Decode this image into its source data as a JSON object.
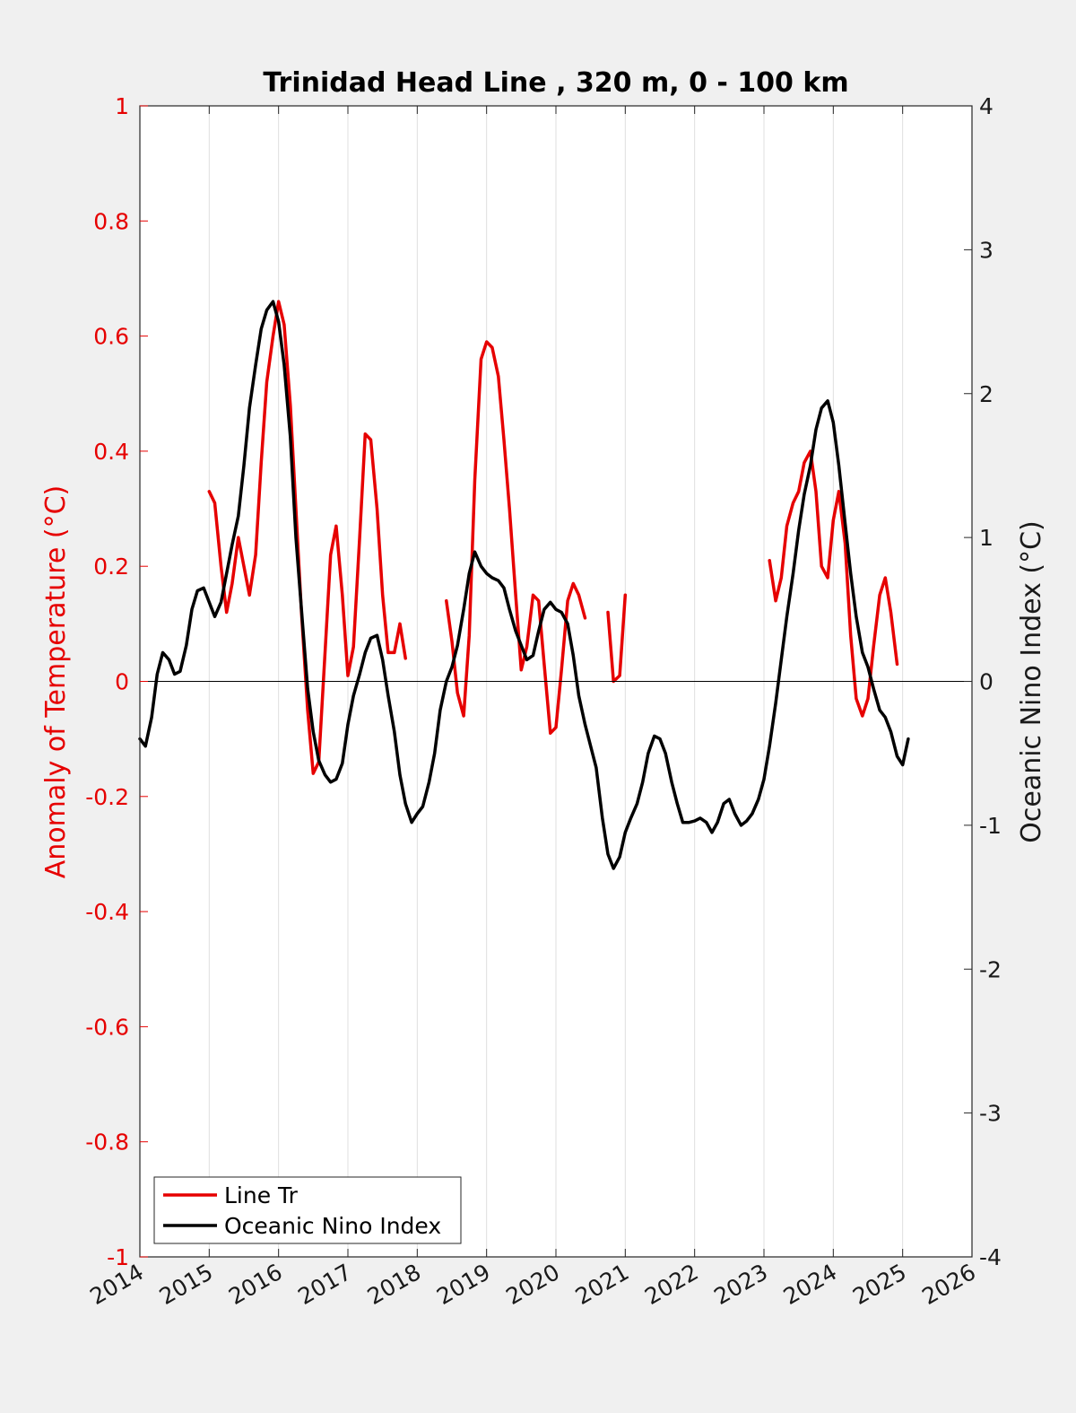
{
  "chart_data": {
    "type": "line",
    "title": "Trinidad Head Line , 320 m, 0 - 100 km",
    "xlabel": "",
    "ylabel_left": "Anomaly of Temperature (°C)",
    "ylabel_right": "Oceanic Nino Index (°C)",
    "xlim": [
      2014,
      2026
    ],
    "ylim_left": [
      -1,
      1
    ],
    "ylim_right": [
      -4,
      4
    ],
    "x_ticks": [
      "2014",
      "2015",
      "2016",
      "2017",
      "2018",
      "2019",
      "2020",
      "2021",
      "2022",
      "2023",
      "2024",
      "2025",
      "2026"
    ],
    "y_ticks_left": [
      "1",
      "0.8",
      "0.6",
      "0.4",
      "0.2",
      "0",
      "-0.2",
      "-0.4",
      "-0.6",
      "-0.8",
      "-1"
    ],
    "y_ticks_right": [
      "4",
      "3",
      "2",
      "1",
      "0",
      "-1",
      "-2",
      "-3",
      "-4"
    ],
    "grid": "vertical",
    "legend_position": "bottom-left",
    "colors": {
      "line_tr": "#e60000",
      "oni": "#000000"
    },
    "series": [
      {
        "name": "Line Tr",
        "axis": "left",
        "segments": [
          [
            [
              2015.0,
              0.33
            ],
            [
              2015.08,
              0.31
            ],
            [
              2015.17,
              0.2
            ],
            [
              2015.25,
              0.12
            ],
            [
              2015.33,
              0.17
            ],
            [
              2015.42,
              0.25
            ],
            [
              2015.5,
              0.2
            ],
            [
              2015.58,
              0.15
            ],
            [
              2015.67,
              0.22
            ],
            [
              2015.75,
              0.38
            ],
            [
              2015.83,
              0.52
            ],
            [
              2015.92,
              0.6
            ],
            [
              2016.0,
              0.66
            ],
            [
              2016.08,
              0.62
            ],
            [
              2016.17,
              0.48
            ],
            [
              2016.25,
              0.3
            ],
            [
              2016.33,
              0.12
            ],
            [
              2016.42,
              -0.05
            ],
            [
              2016.5,
              -0.16
            ],
            [
              2016.58,
              -0.14
            ],
            [
              2016.67,
              0.05
            ],
            [
              2016.75,
              0.22
            ],
            [
              2016.83,
              0.27
            ],
            [
              2016.92,
              0.15
            ],
            [
              2017.0,
              0.01
            ],
            [
              2017.08,
              0.06
            ],
            [
              2017.17,
              0.25
            ],
            [
              2017.25,
              0.43
            ],
            [
              2017.33,
              0.42
            ],
            [
              2017.42,
              0.3
            ],
            [
              2017.5,
              0.15
            ],
            [
              2017.58,
              0.05
            ],
            [
              2017.67,
              0.05
            ],
            [
              2017.75,
              0.1
            ],
            [
              2017.83,
              0.04
            ]
          ],
          [
            [
              2018.42,
              0.14
            ],
            [
              2018.5,
              0.07
            ],
            [
              2018.58,
              -0.02
            ],
            [
              2018.67,
              -0.06
            ],
            [
              2018.75,
              0.08
            ],
            [
              2018.83,
              0.35
            ],
            [
              2018.92,
              0.56
            ],
            [
              2019.0,
              0.59
            ],
            [
              2019.08,
              0.58
            ],
            [
              2019.17,
              0.53
            ],
            [
              2019.25,
              0.42
            ],
            [
              2019.33,
              0.3
            ],
            [
              2019.42,
              0.15
            ],
            [
              2019.5,
              0.02
            ],
            [
              2019.58,
              0.06
            ],
            [
              2019.67,
              0.15
            ],
            [
              2019.75,
              0.14
            ],
            [
              2019.83,
              0.03
            ],
            [
              2019.92,
              -0.09
            ],
            [
              2020.0,
              -0.08
            ],
            [
              2020.08,
              0.02
            ],
            [
              2020.17,
              0.14
            ],
            [
              2020.25,
              0.17
            ],
            [
              2020.33,
              0.15
            ],
            [
              2020.42,
              0.11
            ]
          ],
          [
            [
              2020.75,
              0.12
            ],
            [
              2020.83,
              0.0
            ],
            [
              2020.92,
              0.01
            ],
            [
              2021.0,
              0.15
            ]
          ],
          [
            [
              2023.08,
              0.21
            ],
            [
              2023.17,
              0.14
            ],
            [
              2023.25,
              0.18
            ],
            [
              2023.33,
              0.27
            ],
            [
              2023.42,
              0.31
            ],
            [
              2023.5,
              0.33
            ],
            [
              2023.58,
              0.38
            ],
            [
              2023.67,
              0.4
            ],
            [
              2023.75,
              0.33
            ],
            [
              2023.83,
              0.2
            ],
            [
              2023.92,
              0.18
            ],
            [
              2024.0,
              0.28
            ],
            [
              2024.08,
              0.33
            ],
            [
              2024.17,
              0.24
            ],
            [
              2024.25,
              0.08
            ],
            [
              2024.33,
              -0.03
            ],
            [
              2024.42,
              -0.06
            ],
            [
              2024.5,
              -0.03
            ],
            [
              2024.58,
              0.06
            ],
            [
              2024.67,
              0.15
            ],
            [
              2024.75,
              0.18
            ],
            [
              2024.83,
              0.12
            ],
            [
              2024.92,
              0.03
            ]
          ]
        ]
      },
      {
        "name": "Oceanic Nino Index",
        "axis": "right",
        "segments": [
          [
            [
              2014.0,
              -0.4
            ],
            [
              2014.08,
              -0.45
            ],
            [
              2014.17,
              -0.25
            ],
            [
              2014.25,
              0.05
            ],
            [
              2014.33,
              0.2
            ],
            [
              2014.42,
              0.15
            ],
            [
              2014.5,
              0.05
            ],
            [
              2014.58,
              0.07
            ],
            [
              2014.67,
              0.25
            ],
            [
              2014.75,
              0.5
            ],
            [
              2014.83,
              0.63
            ],
            [
              2014.92,
              0.65
            ],
            [
              2015.0,
              0.55
            ],
            [
              2015.08,
              0.45
            ],
            [
              2015.17,
              0.55
            ],
            [
              2015.25,
              0.75
            ],
            [
              2015.33,
              0.95
            ],
            [
              2015.42,
              1.15
            ],
            [
              2015.5,
              1.5
            ],
            [
              2015.58,
              1.9
            ],
            [
              2015.67,
              2.2
            ],
            [
              2015.75,
              2.45
            ],
            [
              2015.83,
              2.58
            ],
            [
              2015.92,
              2.64
            ],
            [
              2016.0,
              2.5
            ],
            [
              2016.08,
              2.2
            ],
            [
              2016.17,
              1.7
            ],
            [
              2016.25,
              1.0
            ],
            [
              2016.33,
              0.5
            ],
            [
              2016.42,
              -0.05
            ],
            [
              2016.5,
              -0.35
            ],
            [
              2016.58,
              -0.55
            ],
            [
              2016.67,
              -0.65
            ],
            [
              2016.75,
              -0.7
            ],
            [
              2016.83,
              -0.68
            ],
            [
              2016.92,
              -0.57
            ],
            [
              2017.0,
              -0.3
            ],
            [
              2017.08,
              -0.1
            ],
            [
              2017.17,
              0.05
            ],
            [
              2017.25,
              0.2
            ],
            [
              2017.33,
              0.3
            ],
            [
              2017.42,
              0.32
            ],
            [
              2017.5,
              0.15
            ],
            [
              2017.58,
              -0.1
            ],
            [
              2017.67,
              -0.35
            ],
            [
              2017.75,
              -0.65
            ],
            [
              2017.83,
              -0.85
            ],
            [
              2017.92,
              -0.98
            ],
            [
              2018.0,
              -0.92
            ],
            [
              2018.08,
              -0.87
            ],
            [
              2018.17,
              -0.7
            ],
            [
              2018.25,
              -0.5
            ],
            [
              2018.33,
              -0.2
            ],
            [
              2018.42,
              0.0
            ],
            [
              2018.5,
              0.1
            ],
            [
              2018.58,
              0.25
            ],
            [
              2018.67,
              0.5
            ],
            [
              2018.75,
              0.75
            ],
            [
              2018.83,
              0.9
            ],
            [
              2018.92,
              0.8
            ],
            [
              2019.0,
              0.75
            ],
            [
              2019.08,
              0.72
            ],
            [
              2019.17,
              0.7
            ],
            [
              2019.25,
              0.65
            ],
            [
              2019.33,
              0.5
            ],
            [
              2019.42,
              0.35
            ],
            [
              2019.5,
              0.25
            ],
            [
              2019.58,
              0.15
            ],
            [
              2019.67,
              0.18
            ],
            [
              2019.75,
              0.35
            ],
            [
              2019.83,
              0.5
            ],
            [
              2019.92,
              0.55
            ],
            [
              2020.0,
              0.5
            ],
            [
              2020.08,
              0.48
            ],
            [
              2020.17,
              0.4
            ],
            [
              2020.25,
              0.18
            ],
            [
              2020.33,
              -0.1
            ],
            [
              2020.42,
              -0.3
            ],
            [
              2020.5,
              -0.45
            ],
            [
              2020.58,
              -0.6
            ],
            [
              2020.67,
              -0.95
            ],
            [
              2020.75,
              -1.2
            ],
            [
              2020.83,
              -1.3
            ],
            [
              2020.92,
              -1.22
            ],
            [
              2021.0,
              -1.05
            ],
            [
              2021.08,
              -0.95
            ],
            [
              2021.17,
              -0.85
            ],
            [
              2021.25,
              -0.7
            ],
            [
              2021.33,
              -0.5
            ],
            [
              2021.42,
              -0.38
            ],
            [
              2021.5,
              -0.4
            ],
            [
              2021.58,
              -0.5
            ],
            [
              2021.67,
              -0.7
            ],
            [
              2021.75,
              -0.85
            ],
            [
              2021.83,
              -0.98
            ],
            [
              2021.92,
              -0.98
            ],
            [
              2022.0,
              -0.97
            ],
            [
              2022.08,
              -0.95
            ],
            [
              2022.17,
              -0.98
            ],
            [
              2022.25,
              -1.05
            ],
            [
              2022.33,
              -0.98
            ],
            [
              2022.42,
              -0.85
            ],
            [
              2022.5,
              -0.82
            ],
            [
              2022.58,
              -0.92
            ],
            [
              2022.67,
              -1.0
            ],
            [
              2022.75,
              -0.97
            ],
            [
              2022.83,
              -0.92
            ],
            [
              2022.92,
              -0.82
            ],
            [
              2023.0,
              -0.68
            ],
            [
              2023.08,
              -0.45
            ],
            [
              2023.17,
              -0.15
            ],
            [
              2023.25,
              0.15
            ],
            [
              2023.33,
              0.45
            ],
            [
              2023.42,
              0.75
            ],
            [
              2023.5,
              1.05
            ],
            [
              2023.58,
              1.3
            ],
            [
              2023.67,
              1.5
            ],
            [
              2023.75,
              1.75
            ],
            [
              2023.83,
              1.9
            ],
            [
              2023.92,
              1.95
            ],
            [
              2024.0,
              1.8
            ],
            [
              2024.08,
              1.5
            ],
            [
              2024.17,
              1.1
            ],
            [
              2024.25,
              0.75
            ],
            [
              2024.33,
              0.45
            ],
            [
              2024.42,
              0.2
            ],
            [
              2024.5,
              0.1
            ],
            [
              2024.58,
              -0.05
            ],
            [
              2024.67,
              -0.2
            ],
            [
              2024.75,
              -0.25
            ],
            [
              2024.83,
              -0.35
            ],
            [
              2024.92,
              -0.52
            ],
            [
              2025.0,
              -0.58
            ],
            [
              2025.08,
              -0.4
            ]
          ]
        ]
      }
    ]
  }
}
